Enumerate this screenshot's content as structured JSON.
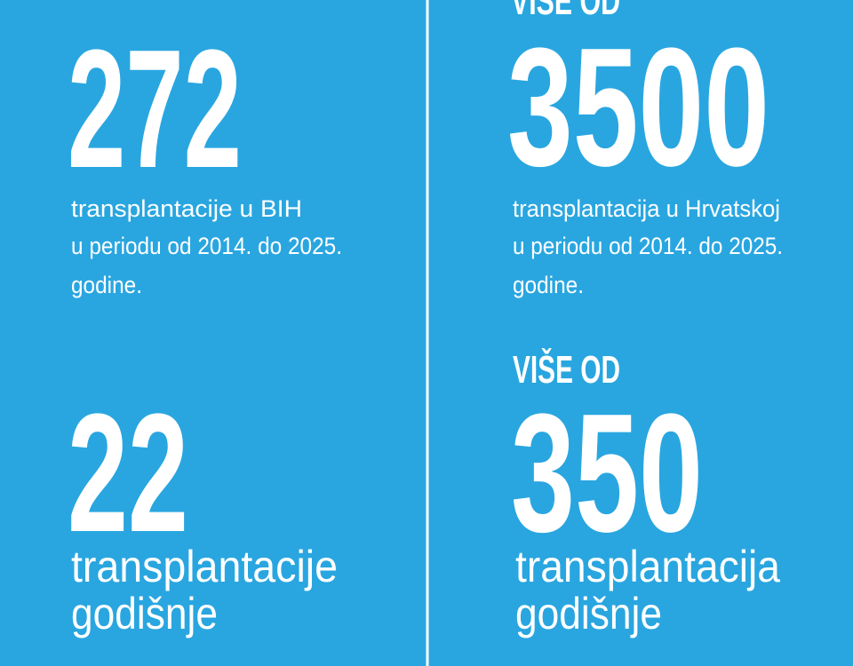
{
  "left": {
    "total": {
      "number": "272",
      "lines": [
        "transplantacije u BIH",
        "u periodu od 2014. do 2025.",
        "godine."
      ]
    },
    "yearly": {
      "number": "22",
      "lines": [
        "transplantacije",
        "godišnje"
      ]
    }
  },
  "right": {
    "total": {
      "prefix": "VIŠE OD",
      "number": "3500",
      "lines": [
        "transplantacija u Hrvatskoj",
        "u periodu od 2014. do 2025.",
        "godine."
      ]
    },
    "yearly": {
      "prefix": "VIŠE OD",
      "number": "350",
      "lines": [
        "transplantacija",
        "godišnje"
      ]
    }
  }
}
